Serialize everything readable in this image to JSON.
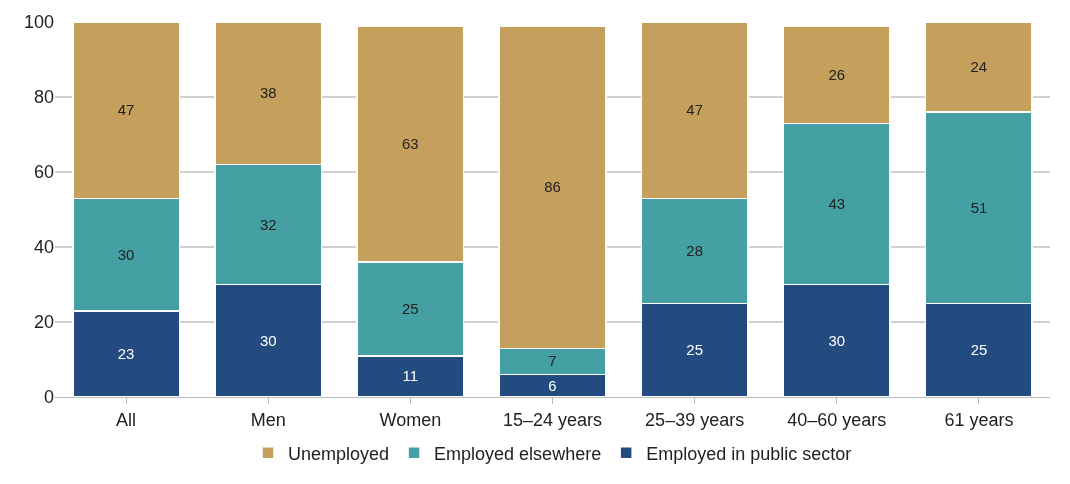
{
  "chart_data": {
    "type": "bar",
    "stacked": true,
    "data_labels": true,
    "categories": [
      "All",
      "Men",
      "Women",
      "15–24 years",
      "25–39 years",
      "40–60 years",
      "61 years"
    ],
    "series": [
      {
        "name": "Employed in public sector",
        "color": "#234b7f",
        "values": [
          23,
          30,
          11,
          6,
          25,
          30,
          25
        ]
      },
      {
        "name": "Employed elsewhere",
        "color": "#45a0a3",
        "values": [
          30,
          32,
          25,
          7,
          28,
          43,
          51
        ]
      },
      {
        "name": "Unemployed",
        "color": "#c4a05c",
        "values": [
          47,
          38,
          63,
          86,
          47,
          26,
          24
        ]
      }
    ],
    "ylim": [
      0,
      100
    ],
    "yticks": [
      0,
      20,
      40,
      60,
      80,
      100
    ],
    "grid": "y",
    "legend": "bottom"
  }
}
